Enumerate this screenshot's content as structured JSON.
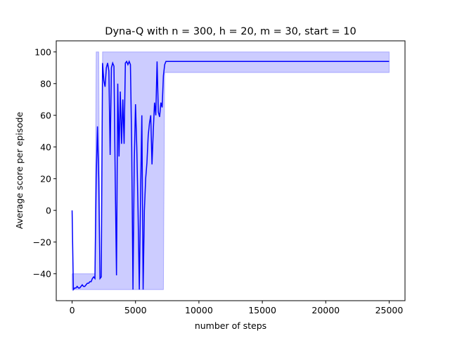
{
  "chart_data": {
    "type": "line",
    "title": "Dyna-Q with n = 300, h = 20, m = 30, start = 10",
    "xlabel": "number of steps",
    "ylabel": "Average score per episode",
    "xlim": [
      -1250,
      26250
    ],
    "ylim": [
      -57,
      107
    ],
    "xticks": [
      0,
      5000,
      10000,
      15000,
      20000,
      25000
    ],
    "yticks": [
      -40,
      -20,
      0,
      20,
      40,
      60,
      80,
      100
    ],
    "xtick_labels": [
      "0",
      "5000",
      "10000",
      "15000",
      "20000",
      "25000"
    ],
    "ytick_labels": [
      "−40",
      "−20",
      "0",
      "20",
      "40",
      "60",
      "80",
      "100"
    ],
    "grid": false,
    "legend": "none",
    "colors": {
      "line": "#0000ff",
      "band": "#0000ff",
      "band_opacity": 0.2
    },
    "series": [
      {
        "x": [
          0,
          100,
          200,
          300,
          400,
          500,
          600,
          700,
          800,
          900,
          1000,
          1100,
          1200,
          1300,
          1400,
          1500,
          1600,
          1700,
          1800,
          1900,
          2000,
          2100,
          2200,
          2300,
          2400,
          2500,
          2600,
          2700,
          2800,
          2900,
          3000,
          3100,
          3200,
          3300,
          3400,
          3500,
          3600,
          3700,
          3800,
          3900,
          4000,
          4100,
          4200,
          4300,
          4400,
          4500,
          4600,
          4700,
          4800,
          4900,
          5000,
          5100,
          5200,
          5300,
          5400,
          5500,
          5600,
          5700,
          5800,
          5900,
          6000,
          6100,
          6200,
          6300,
          6400,
          6500,
          6600,
          6700,
          6800,
          6900,
          7000,
          7100,
          7200,
          7300,
          7400,
          7500,
          8000,
          9000,
          10000,
          11000,
          12000,
          13000,
          14000,
          15000,
          16000,
          17000,
          18000,
          19000,
          20000,
          21000,
          22000,
          23000,
          24000,
          25000
        ],
        "y": [
          0,
          -50,
          -49,
          -49,
          -48,
          -49,
          -49,
          -48,
          -47,
          -48,
          -48,
          -47,
          -46,
          -46,
          -45,
          -45,
          -43,
          -42,
          -43,
          20,
          53,
          20,
          -43,
          -42,
          93,
          82,
          78,
          90,
          93,
          88,
          35,
          90,
          93,
          91,
          20,
          -41,
          80,
          34,
          75,
          42,
          70,
          42,
          93,
          94,
          92,
          94,
          92,
          40,
          -50,
          30,
          67,
          40,
          0,
          -50,
          10,
          60,
          -50,
          0,
          20,
          30,
          47,
          55,
          60,
          29,
          50,
          68,
          60,
          94,
          62,
          59,
          68,
          65,
          85,
          92,
          94,
          94,
          94,
          94,
          94,
          94,
          94,
          94,
          94,
          94,
          94,
          94,
          94,
          94,
          94,
          94,
          94,
          94,
          94,
          94
        ],
        "lower": [
          -50,
          -50,
          -50,
          -50,
          -50,
          -50,
          -50,
          -50,
          -50,
          -50,
          -50,
          -50,
          -50,
          -50,
          -50,
          -50,
          -50,
          -50,
          -50,
          -50,
          -50,
          -50,
          -50,
          -50,
          -50,
          -50,
          -50,
          -50,
          -50,
          -50,
          -50,
          -50,
          -50,
          -50,
          -50,
          -50,
          -50,
          -50,
          -50,
          -50,
          -50,
          -50,
          -50,
          -50,
          -50,
          -50,
          -50,
          -50,
          -50,
          -50,
          -50,
          -50,
          -50,
          -50,
          -50,
          -50,
          -50,
          -50,
          -50,
          -50,
          -50,
          -50,
          -50,
          -50,
          -50,
          -50,
          -50,
          -50,
          -50,
          -50,
          -50,
          -50,
          -50,
          87,
          87,
          87,
          87,
          87,
          87,
          87,
          87,
          87,
          87,
          87,
          87,
          87,
          87,
          87,
          87,
          87,
          87,
          87,
          87,
          87
        ],
        "upper": [
          -40,
          -40,
          -40,
          -40,
          -40,
          -40,
          -40,
          -40,
          -40,
          -40,
          -40,
          -40,
          -40,
          -40,
          -40,
          -40,
          -40,
          -40,
          -40,
          100,
          100,
          100,
          -43,
          -42,
          100,
          100,
          100,
          100,
          100,
          100,
          100,
          100,
          100,
          100,
          100,
          100,
          100,
          100,
          100,
          100,
          100,
          100,
          100,
          100,
          100,
          100,
          100,
          100,
          100,
          100,
          100,
          100,
          100,
          100,
          100,
          100,
          100,
          100,
          100,
          100,
          100,
          100,
          100,
          100,
          100,
          100,
          100,
          100,
          100,
          100,
          100,
          100,
          100,
          100,
          100,
          100,
          100,
          100,
          100,
          100,
          100,
          100,
          100,
          100,
          100,
          100,
          100,
          100,
          100,
          100,
          100,
          100,
          100,
          100
        ]
      }
    ]
  }
}
